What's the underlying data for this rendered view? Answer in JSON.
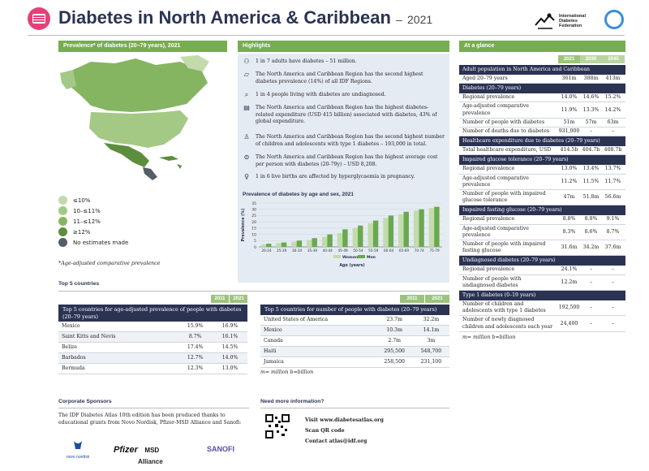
{
  "header": {
    "title": "Diabetes in North America & Caribbean",
    "year_sep": "–",
    "year": "2021",
    "idf_logo_text": "International Diabetes Federation"
  },
  "map_section": {
    "title": "Prevalence* of diabetes (20–79 years), 2021",
    "legend": [
      {
        "label": "≤10%",
        "color": "#c3dbaa"
      },
      {
        "label": "10–≤11%",
        "color": "#a4c985"
      },
      {
        "label": "11–≤12%",
        "color": "#86b562"
      },
      {
        "label": "≥12%",
        "color": "#5c8e3d"
      },
      {
        "label": "No estimates made",
        "color": "#555e66"
      }
    ],
    "footnote": "*Age-adjusted comparative prevalence"
  },
  "highlights": {
    "title": "Highlights",
    "items": [
      {
        "icon": "people-icon",
        "glyph": "⚇",
        "text": "1 in 7 adults have diabetes – 51 million."
      },
      {
        "icon": "map-icon",
        "glyph": "▱",
        "text": "The North America and Caribbean Region has the second highest diabetes prevalence (14%) of all IDF Regions."
      },
      {
        "icon": "magnifier-icon",
        "glyph": "⌕",
        "text": "1 in 4 people living with diabetes are undiagnosed."
      },
      {
        "icon": "money-icon",
        "glyph": "▤",
        "text": "The North America and Caribbean Region has the highest diabetes-related expenditure (USD 415 billion) associated with diabetes, 43% of global expenditure."
      },
      {
        "icon": "child-icon",
        "glyph": "♙",
        "text": "The North America and Caribbean Region has the second highest number of children and adolescents with type 1 diabetes – 193,000 in total."
      },
      {
        "icon": "cost-icon",
        "glyph": "⊜",
        "text": "The North America and Caribbean Region has the highest average cost per person with diabetes (20-79y) – USD 8,208."
      },
      {
        "icon": "pregnancy-icon",
        "glyph": "♀",
        "text": "1 in 6 live births are affected by hyperglycaemia in pregnancy."
      }
    ]
  },
  "chart_data": {
    "type": "bar",
    "title": "Prevalence of diabetes by age and sex, 2021",
    "xlabel": "Age (years)",
    "ylabel": "Prevalence (%)",
    "ylim": [
      0,
      35
    ],
    "yticks": [
      0,
      5,
      10,
      15,
      20,
      25,
      30,
      35
    ],
    "categories": [
      "20-24",
      "25-29",
      "30-34",
      "35-39",
      "40-44",
      "45-49",
      "50-54",
      "55-59",
      "60-64",
      "65-69",
      "70-74",
      "75-79"
    ],
    "series": [
      {
        "name": "Women",
        "color": "#c2dcaa",
        "values": [
          2,
          3,
          4,
          5.5,
          8,
          11,
          15,
          19,
          23,
          26,
          29,
          31
        ]
      },
      {
        "name": "Men",
        "color": "#6aa84f",
        "values": [
          2.5,
          3.5,
          5,
          7,
          10,
          14,
          17,
          21,
          25,
          28,
          30,
          32
        ]
      }
    ]
  },
  "at_a_glance": {
    "title": "At a glance",
    "years": [
      "2021",
      "2030",
      "2045"
    ],
    "sections": [
      {
        "title": "Adult population in North America and Caribbean",
        "rows": [
          {
            "label": "Aged 20–79 years",
            "values": [
              "361m",
              "388m",
              "413m"
            ]
          }
        ]
      },
      {
        "title": "Diabetes (20–79 years)",
        "rows": [
          {
            "label": "Regional prevalence",
            "values": [
              "14.0%",
              "14.6%",
              "15.2%"
            ]
          },
          {
            "label": "Age-adjusted comparative prevalence",
            "values": [
              "11.9%",
              "13.3%",
              "14.2%"
            ]
          },
          {
            "label": "Number of people with diabetes",
            "values": [
              "51m",
              "57m",
              "63m"
            ]
          },
          {
            "label": "Number of deaths due to diabetes",
            "values": [
              "931,000",
              "–",
              "–"
            ]
          }
        ]
      },
      {
        "title": "Healthcare expenditure due to diabetes (20–79 years)",
        "rows": [
          {
            "label": "Total healthcare expenditure, USD",
            "values": [
              "414.5b",
              "404.7b",
              "408.7b"
            ]
          }
        ]
      },
      {
        "title": "Impaired glucose tolerance (20–79 years)",
        "rows": [
          {
            "label": "Regional prevalence",
            "values": [
              "13.0%",
              "13.4%",
              "13.7%"
            ]
          },
          {
            "label": "Age-adjusted comparative prevalence",
            "values": [
              "11.2%",
              "11.5%",
              "11.7%"
            ]
          },
          {
            "label": "Number of people with impaired glucose tolerance",
            "values": [
              "47m",
              "51.8m",
              "56.6m"
            ]
          }
        ]
      },
      {
        "title": "Impaired fasting glucose (20–79 years)",
        "rows": [
          {
            "label": "Regional prevalence",
            "values": [
              "8.8%",
              "8.8%",
              "9.1%"
            ]
          },
          {
            "label": "Age-adjusted comparative prevalence",
            "values": [
              "8.3%",
              "8.6%",
              "8.7%"
            ]
          },
          {
            "label": "Number of people with impaired fasting glucose",
            "values": [
              "31.6m",
              "34.2m",
              "37.6m"
            ]
          }
        ]
      },
      {
        "title": "Undiagnosed diabetes (20–79 years)",
        "rows": [
          {
            "label": "Regional prevalence",
            "values": [
              "24.1%",
              "–",
              "–"
            ]
          },
          {
            "label": "Number of people with undiagnosed diabetes",
            "values": [
              "12.2m",
              "–",
              "–"
            ]
          }
        ]
      },
      {
        "title": "Type 1 diabetes (0–19 years)",
        "rows": [
          {
            "label": "Number of children and adolescents with type 1 diabetes",
            "values": [
              "192,500",
              "–",
              "–"
            ]
          },
          {
            "label": "Number of newly diagnosed children and adolescents each year",
            "values": [
              "24,400",
              "–",
              "–"
            ]
          }
        ]
      }
    ],
    "footnote": "m= million b=billion"
  },
  "top5": {
    "section_title": "Top 5 countries",
    "table1": {
      "years": [
        "2011",
        "2021"
      ],
      "header": "Top 5 countries for age-adjusted prevalence of people with diabetes (20–79 years)",
      "rows": [
        {
          "country": "Mexico",
          "v2011": "15.9%",
          "v2021": "16.9%"
        },
        {
          "country": "Saint Kitts and Nevis",
          "v2011": "8.7%",
          "v2021": "16.1%"
        },
        {
          "country": "Belize",
          "v2011": "17.4%",
          "v2021": "14.5%"
        },
        {
          "country": "Barbados",
          "v2011": "12.7%",
          "v2021": "14.0%"
        },
        {
          "country": "Bermuda",
          "v2011": "12.3%",
          "v2021": "13.0%"
        }
      ]
    },
    "table2": {
      "years": [
        "2011",
        "2021"
      ],
      "header": "Top 5 countries for number of people with diabetes (20–79 years)",
      "rows": [
        {
          "country": "United States of America",
          "v2011": "23.7m",
          "v2021": "32.2m"
        },
        {
          "country": "Mexico",
          "v2011": "10.3m",
          "v2021": "14.1m"
        },
        {
          "country": "Canada",
          "v2011": "2.7m",
          "v2021": "3m"
        },
        {
          "country": "Haiti",
          "v2011": "295,500",
          "v2021": "548,700"
        },
        {
          "country": "Jamaica",
          "v2011": "258,500",
          "v2021": "231,100"
        }
      ],
      "footnote": "m= million b=billion"
    }
  },
  "sponsors": {
    "title": "Corporate Sponsors",
    "text": "The IDF Diabetes Atlas 10th edition has been produced thanks to educational grants from Novo Nordisk, Pfizer-MSD Alliance and Sanofi:",
    "logos": {
      "novo": "novo nordisk",
      "pfizer": "Pfizer",
      "msd": "MSD",
      "alliance": "Alliance",
      "sanofi": "SANOFI"
    }
  },
  "more_info": {
    "title": "Need more information?",
    "lines": [
      "Visit www.diabetesatlas.org",
      "Scan QR code",
      "Contact atlas@idf.org"
    ]
  }
}
